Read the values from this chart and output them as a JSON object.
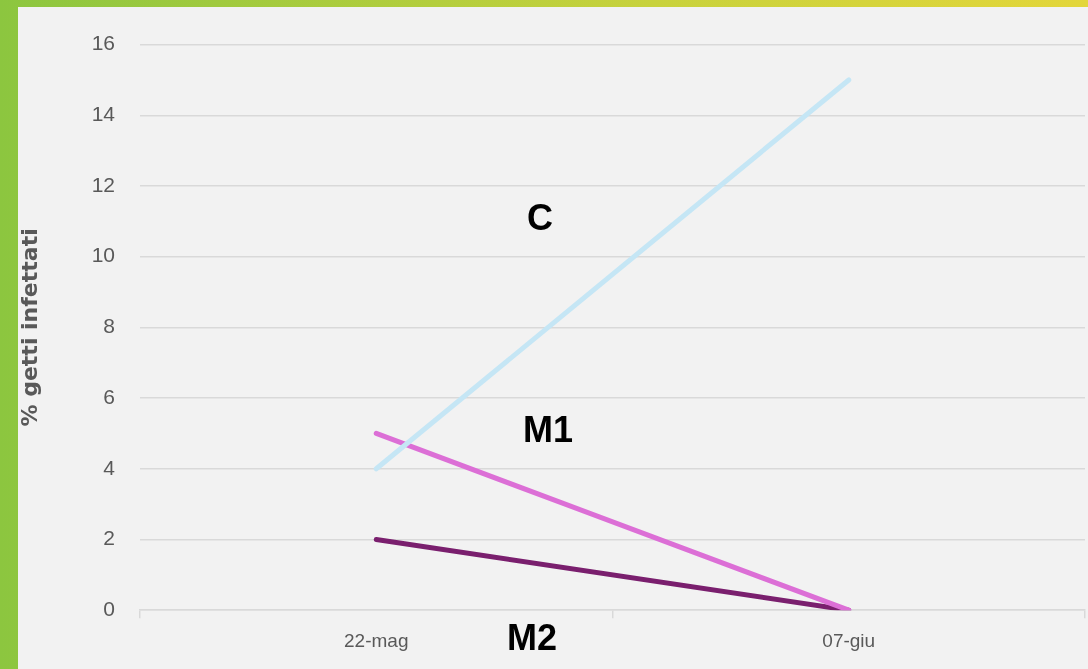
{
  "chart_data": {
    "type": "line",
    "ylabel": "% getti infettati",
    "categories": [
      "22-mag",
      "07-giu"
    ],
    "series": [
      {
        "name": "C",
        "color": "#c5e6f5",
        "values": [
          4,
          15
        ]
      },
      {
        "name": "M1",
        "color": "#dc6fd6",
        "values": [
          5,
          0
        ]
      },
      {
        "name": "M2",
        "color": "#7a1f6e",
        "values": [
          2,
          0
        ]
      }
    ],
    "ylim": [
      0,
      16
    ],
    "yticks": [
      0,
      2,
      4,
      6,
      8,
      10,
      12,
      14,
      16
    ],
    "grid": "y",
    "marker": "none",
    "line_style": "solid"
  }
}
